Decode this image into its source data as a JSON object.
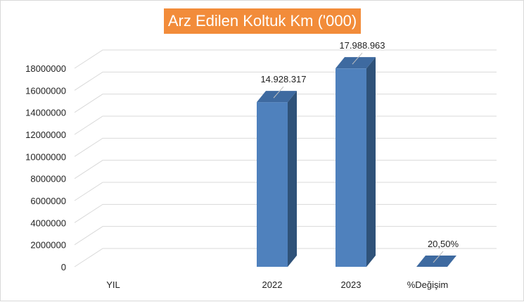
{
  "chart_data": {
    "type": "bar",
    "title": "Arz Edilen Koltuk Km ('000)",
    "categories": [
      "YIL",
      "2022",
      "2023",
      "%Değişim"
    ],
    "values": [
      0,
      14928317,
      17988963,
      0.205
    ],
    "data_labels": [
      "",
      "14.928.317",
      "17.988.963",
      "20,50%"
    ],
    "ylim": [
      0,
      18000000
    ],
    "yticks": [
      "0",
      "2000000",
      "4000000",
      "6000000",
      "8000000",
      "10000000",
      "12000000",
      "14000000",
      "16000000",
      "18000000"
    ],
    "grid": true,
    "legend": "none",
    "colors": {
      "front": "#4f81bd",
      "side": "#2f5279",
      "top": "#3e6aa0",
      "title_bg": "#f28c3a"
    }
  }
}
